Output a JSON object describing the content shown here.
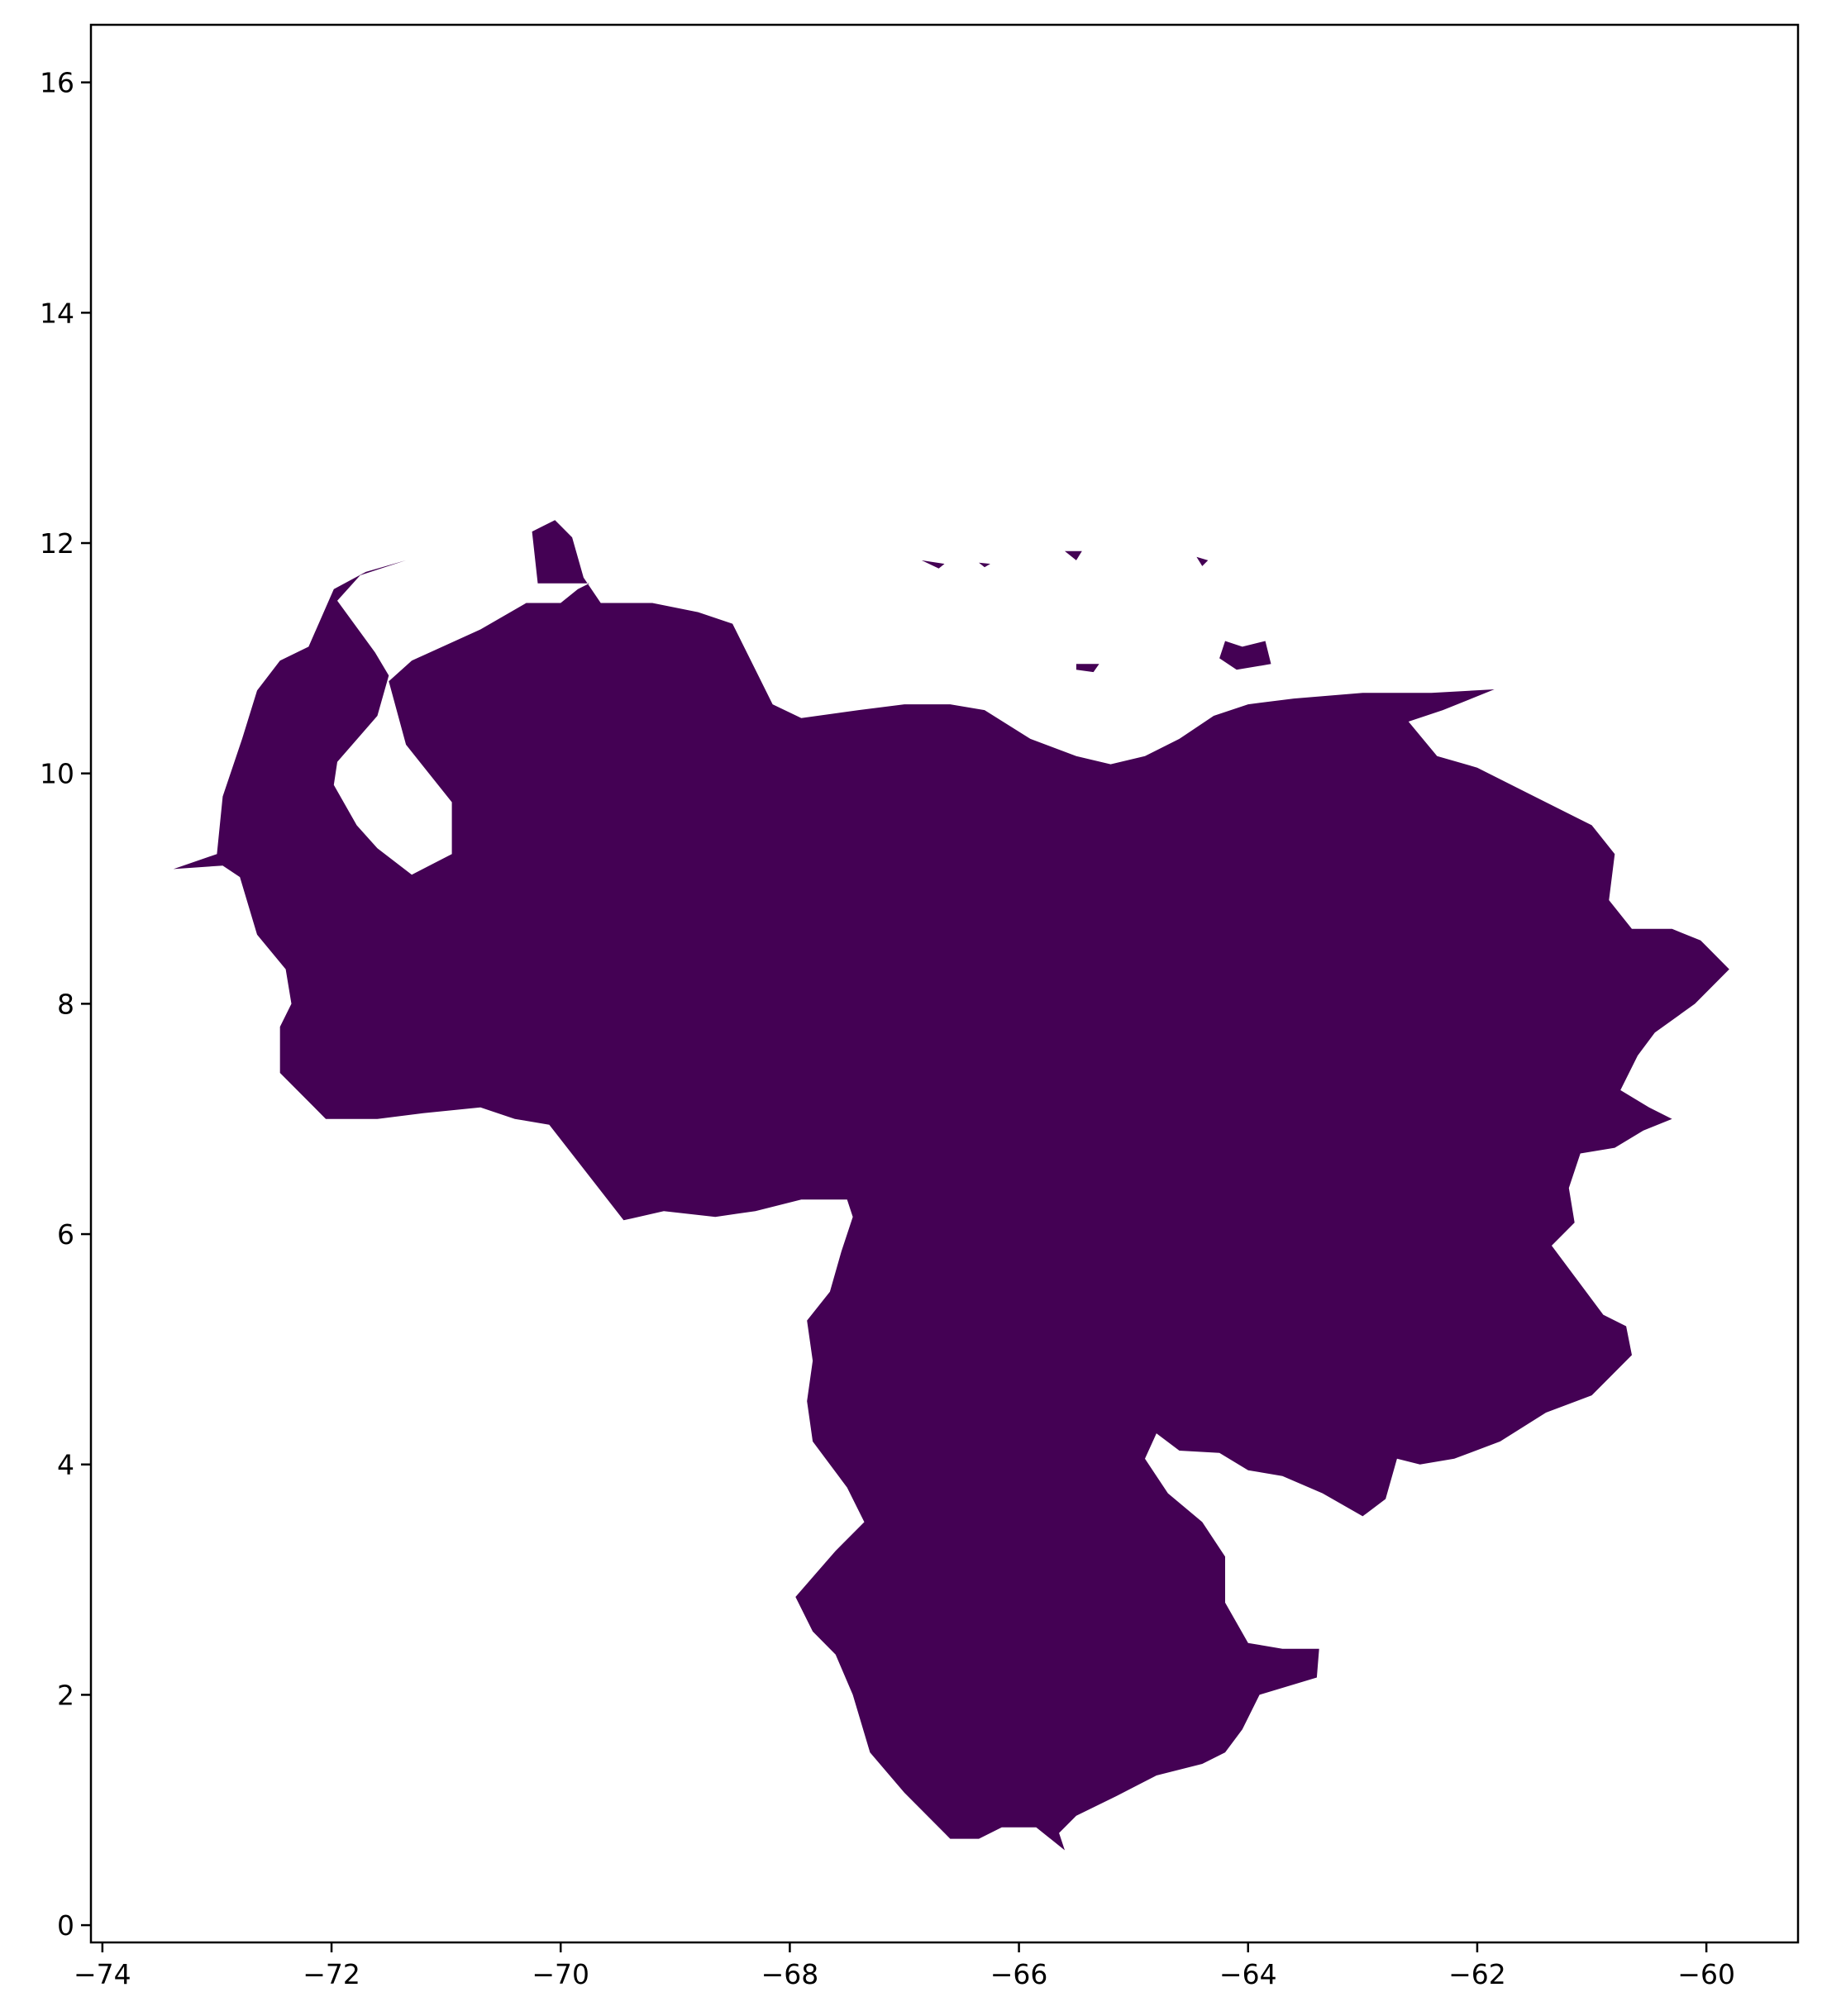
{
  "chart_data": {
    "type": "map",
    "region": "Venezuela",
    "fill_color": "#440154",
    "background_color": "#ffffff",
    "xlim": [
      -74.1,
      -59.2
    ],
    "ylim": [
      -0.15,
      16.5
    ],
    "grid": false,
    "legend": "none",
    "x_ticks": [
      {
        "value": -74,
        "label": "−74"
      },
      {
        "value": -72,
        "label": "−72"
      },
      {
        "value": -70,
        "label": "−70"
      },
      {
        "value": -68,
        "label": "−68"
      },
      {
        "value": -66,
        "label": "−66"
      },
      {
        "value": -64,
        "label": "−64"
      },
      {
        "value": -62,
        "label": "−62"
      },
      {
        "value": -60,
        "label": "−60"
      }
    ],
    "y_ticks": [
      {
        "value": 0,
        "label": "0"
      },
      {
        "value": 2,
        "label": "2"
      },
      {
        "value": 4,
        "label": "4"
      },
      {
        "value": 6,
        "label": "6"
      },
      {
        "value": 8,
        "label": "8"
      },
      {
        "value": 10,
        "label": "10"
      },
      {
        "value": 12,
        "label": "12"
      },
      {
        "value": 14,
        "label": "14"
      },
      {
        "value": 16,
        "label": "16"
      }
    ],
    "outline_lonlat": [
      [
        -73.38,
        9.17
      ],
      [
        -73.0,
        9.3
      ],
      [
        -72.95,
        9.8
      ],
      [
        -72.78,
        10.3
      ],
      [
        -72.65,
        10.72
      ],
      [
        -72.45,
        10.98
      ],
      [
        -72.2,
        11.1
      ],
      [
        -71.98,
        11.6
      ],
      [
        -71.7,
        11.75
      ],
      [
        -71.35,
        11.85
      ],
      [
        -71.75,
        11.72
      ],
      [
        -71.95,
        11.5
      ],
      [
        -71.62,
        11.05
      ],
      [
        -71.5,
        10.85
      ],
      [
        -71.6,
        10.5
      ],
      [
        -71.95,
        10.1
      ],
      [
        -71.98,
        9.9
      ],
      [
        -71.78,
        9.55
      ],
      [
        -71.6,
        9.35
      ],
      [
        -71.3,
        9.12
      ],
      [
        -70.95,
        9.3
      ],
      [
        -70.95,
        9.75
      ],
      [
        -71.35,
        10.25
      ],
      [
        -71.5,
        10.8
      ],
      [
        -71.3,
        10.98
      ],
      [
        -70.7,
        11.25
      ],
      [
        -70.3,
        11.48
      ],
      [
        -70.0,
        11.48
      ],
      [
        -69.85,
        11.6
      ],
      [
        -69.75,
        11.65
      ],
      [
        -70.2,
        11.65
      ],
      [
        -70.25,
        12.1
      ],
      [
        -70.05,
        12.2
      ],
      [
        -69.9,
        12.05
      ],
      [
        -69.8,
        11.7
      ],
      [
        -69.65,
        11.48
      ],
      [
        -69.2,
        11.48
      ],
      [
        -68.8,
        11.4
      ],
      [
        -68.5,
        11.3
      ],
      [
        -68.3,
        10.9
      ],
      [
        -68.15,
        10.6
      ],
      [
        -67.9,
        10.48
      ],
      [
        -67.4,
        10.55
      ],
      [
        -67.0,
        10.6
      ],
      [
        -66.6,
        10.6
      ],
      [
        -66.3,
        10.55
      ],
      [
        -65.9,
        10.3
      ],
      [
        -65.5,
        10.15
      ],
      [
        -65.2,
        10.08
      ],
      [
        -64.9,
        10.15
      ],
      [
        -64.6,
        10.3
      ],
      [
        -64.3,
        10.5
      ],
      [
        -64.0,
        10.6
      ],
      [
        -63.6,
        10.65
      ],
      [
        -63.0,
        10.7
      ],
      [
        -62.4,
        10.7
      ],
      [
        -61.85,
        10.73
      ],
      [
        -62.3,
        10.55
      ],
      [
        -62.6,
        10.45
      ],
      [
        -62.35,
        10.15
      ],
      [
        -62.0,
        10.05
      ],
      [
        -61.5,
        9.8
      ],
      [
        -61.0,
        9.55
      ],
      [
        -60.8,
        9.3
      ],
      [
        -60.85,
        8.9
      ],
      [
        -60.65,
        8.65
      ],
      [
        -60.3,
        8.65
      ],
      [
        -60.05,
        8.55
      ],
      [
        -59.8,
        8.3
      ],
      [
        -60.1,
        8.0
      ],
      [
        -60.45,
        7.75
      ],
      [
        -60.6,
        7.55
      ],
      [
        -60.75,
        7.25
      ],
      [
        -60.5,
        7.1
      ],
      [
        -60.3,
        7.0
      ],
      [
        -60.55,
        6.9
      ],
      [
        -60.8,
        6.75
      ],
      [
        -61.1,
        6.7
      ],
      [
        -61.2,
        6.4
      ],
      [
        -61.15,
        6.1
      ],
      [
        -61.35,
        5.9
      ],
      [
        -60.9,
        5.3
      ],
      [
        -60.7,
        5.2
      ],
      [
        -60.65,
        4.95
      ],
      [
        -61.0,
        4.6
      ],
      [
        -61.4,
        4.45
      ],
      [
        -61.8,
        4.2
      ],
      [
        -62.2,
        4.05
      ],
      [
        -62.5,
        4.0
      ],
      [
        -62.7,
        4.05
      ],
      [
        -62.8,
        3.7
      ],
      [
        -63.0,
        3.55
      ],
      [
        -63.35,
        3.75
      ],
      [
        -63.7,
        3.9
      ],
      [
        -64.0,
        3.95
      ],
      [
        -64.25,
        4.1
      ],
      [
        -64.6,
        4.12
      ],
      [
        -64.8,
        4.27
      ],
      [
        -64.9,
        4.05
      ],
      [
        -64.7,
        3.75
      ],
      [
        -64.4,
        3.5
      ],
      [
        -64.2,
        3.2
      ],
      [
        -64.2,
        2.8
      ],
      [
        -64.0,
        2.45
      ],
      [
        -63.7,
        2.4
      ],
      [
        -63.38,
        2.4
      ],
      [
        -63.4,
        2.15
      ],
      [
        -63.9,
        2.0
      ],
      [
        -64.05,
        1.7
      ],
      [
        -64.2,
        1.5
      ],
      [
        -64.4,
        1.4
      ],
      [
        -64.8,
        1.3
      ],
      [
        -65.15,
        1.12
      ],
      [
        -65.5,
        0.95
      ],
      [
        -65.65,
        0.8
      ],
      [
        -65.6,
        0.65
      ],
      [
        -65.85,
        0.85
      ],
      [
        -66.15,
        0.85
      ],
      [
        -66.35,
        0.75
      ],
      [
        -66.6,
        0.75
      ],
      [
        -67.0,
        1.15
      ],
      [
        -67.3,
        1.5
      ],
      [
        -67.45,
        2.0
      ],
      [
        -67.6,
        2.35
      ],
      [
        -67.8,
        2.55
      ],
      [
        -67.95,
        2.85
      ],
      [
        -67.6,
        3.25
      ],
      [
        -67.35,
        3.5
      ],
      [
        -67.5,
        3.8
      ],
      [
        -67.8,
        4.2
      ],
      [
        -67.85,
        4.55
      ],
      [
        -67.8,
        4.9
      ],
      [
        -67.85,
        5.25
      ],
      [
        -67.65,
        5.5
      ],
      [
        -67.55,
        5.85
      ],
      [
        -67.45,
        6.15
      ],
      [
        -67.5,
        6.3
      ],
      [
        -67.9,
        6.3
      ],
      [
        -68.3,
        6.2
      ],
      [
        -68.65,
        6.15
      ],
      [
        -69.1,
        6.2
      ],
      [
        -69.45,
        6.12
      ],
      [
        -70.1,
        6.95
      ],
      [
        -70.4,
        7.0
      ],
      [
        -70.7,
        7.1
      ],
      [
        -71.2,
        7.05
      ],
      [
        -71.6,
        7.0
      ],
      [
        -72.05,
        7.0
      ],
      [
        -72.45,
        7.4
      ],
      [
        -72.45,
        7.8
      ],
      [
        -72.35,
        8.0
      ],
      [
        -72.4,
        8.3
      ],
      [
        -72.65,
        8.6
      ],
      [
        -72.8,
        9.1
      ],
      [
        -72.95,
        9.2
      ],
      [
        -73.38,
        9.17
      ]
    ],
    "islands_lonlat": [
      [
        [
          -64.2,
          11.15
        ],
        [
          -64.05,
          11.1
        ],
        [
          -63.85,
          11.15
        ],
        [
          -63.8,
          10.95
        ],
        [
          -64.1,
          10.9
        ],
        [
          -64.25,
          11.0
        ]
      ],
      [
        [
          -65.5,
          10.95
        ],
        [
          -65.3,
          10.95
        ],
        [
          -65.35,
          10.88
        ],
        [
          -65.5,
          10.9
        ]
      ],
      [
        [
          -66.85,
          11.85
        ],
        [
          -66.65,
          11.82
        ],
        [
          -66.7,
          11.78
        ]
      ],
      [
        [
          -64.45,
          11.88
        ],
        [
          -64.35,
          11.85
        ],
        [
          -64.4,
          11.8
        ]
      ],
      [
        [
          -66.35,
          11.83
        ],
        [
          -66.25,
          11.82
        ],
        [
          -66.3,
          11.79
        ]
      ],
      [
        [
          -65.6,
          11.93
        ],
        [
          -65.45,
          11.93
        ],
        [
          -65.5,
          11.85
        ]
      ]
    ]
  }
}
